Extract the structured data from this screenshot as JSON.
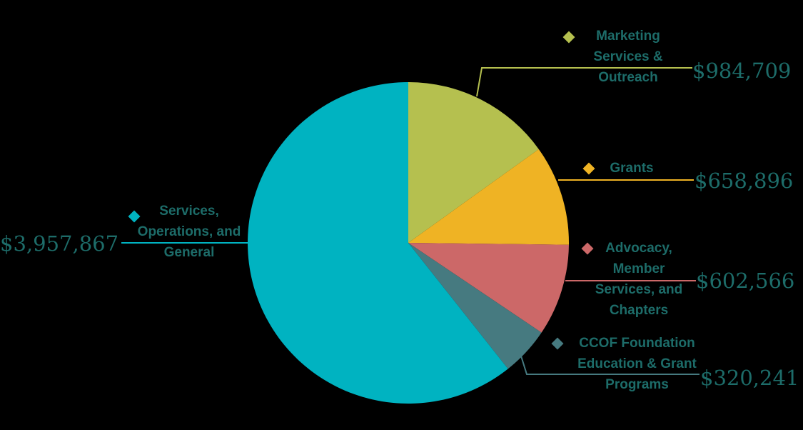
{
  "chart_data": {
    "type": "pie",
    "categories": [
      "Marketing Services & Outreach",
      "Grants",
      "Advocacy, Member Services, and Chapters",
      "CCOF Foundation Education & Grant Programs",
      "Services, Operations, and General"
    ],
    "values": [
      984709,
      658896,
      602566,
      320241,
      3957867
    ],
    "value_labels": [
      "$984,709",
      "$658,896",
      "$602,566",
      "$320,241",
      "$3,957,867"
    ],
    "colors": [
      "#b5c04f",
      "#efb324",
      "#cc6868",
      "#467a80",
      "#00b3c1"
    ]
  }
}
